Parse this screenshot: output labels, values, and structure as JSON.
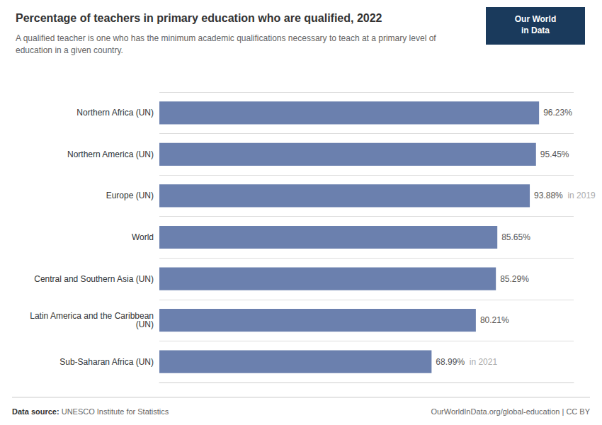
{
  "chart_data": {
    "type": "bar",
    "orientation": "horizontal",
    "title": "Percentage of teachers in primary education who are qualified, 2022",
    "subtitle": "A qualified teacher is one who has the minimum academic qualifications necessary to teach at a primary level of\neducation in a given country.",
    "categories": [
      "Northern Africa (UN)",
      "Northern America (UN)",
      "Europe (UN)",
      "World",
      "Central and Southern Asia (UN)",
      "Latin America and the Caribbean\n(UN)",
      "Sub-Saharan Africa (UN)"
    ],
    "values": [
      96.23,
      95.45,
      93.88,
      85.65,
      85.29,
      80.21,
      68.99
    ],
    "value_labels": [
      "96.23%",
      "95.45%",
      "93.88%",
      "85.65%",
      "85.29%",
      "80.21%",
      "68.99%"
    ],
    "data_labels": true,
    "color": "#6b80ae",
    "xlim": [
      0,
      105
    ],
    "tick_labels": "y",
    "grid": true,
    "annotations": [
      {
        "category": "Europe (UN)",
        "text": "in 2019"
      },
      {
        "category": "Sub-Saharan Africa (UN)",
        "text": "in 2021"
      }
    ],
    "source_label": "Data source:",
    "source": " UNESCO Institute for Statistics",
    "url": "OurWorldInData.org/global-education | CC BY",
    "logo": {
      "text": "Our World\nin Data",
      "color": "#1a3a5c"
    }
  }
}
